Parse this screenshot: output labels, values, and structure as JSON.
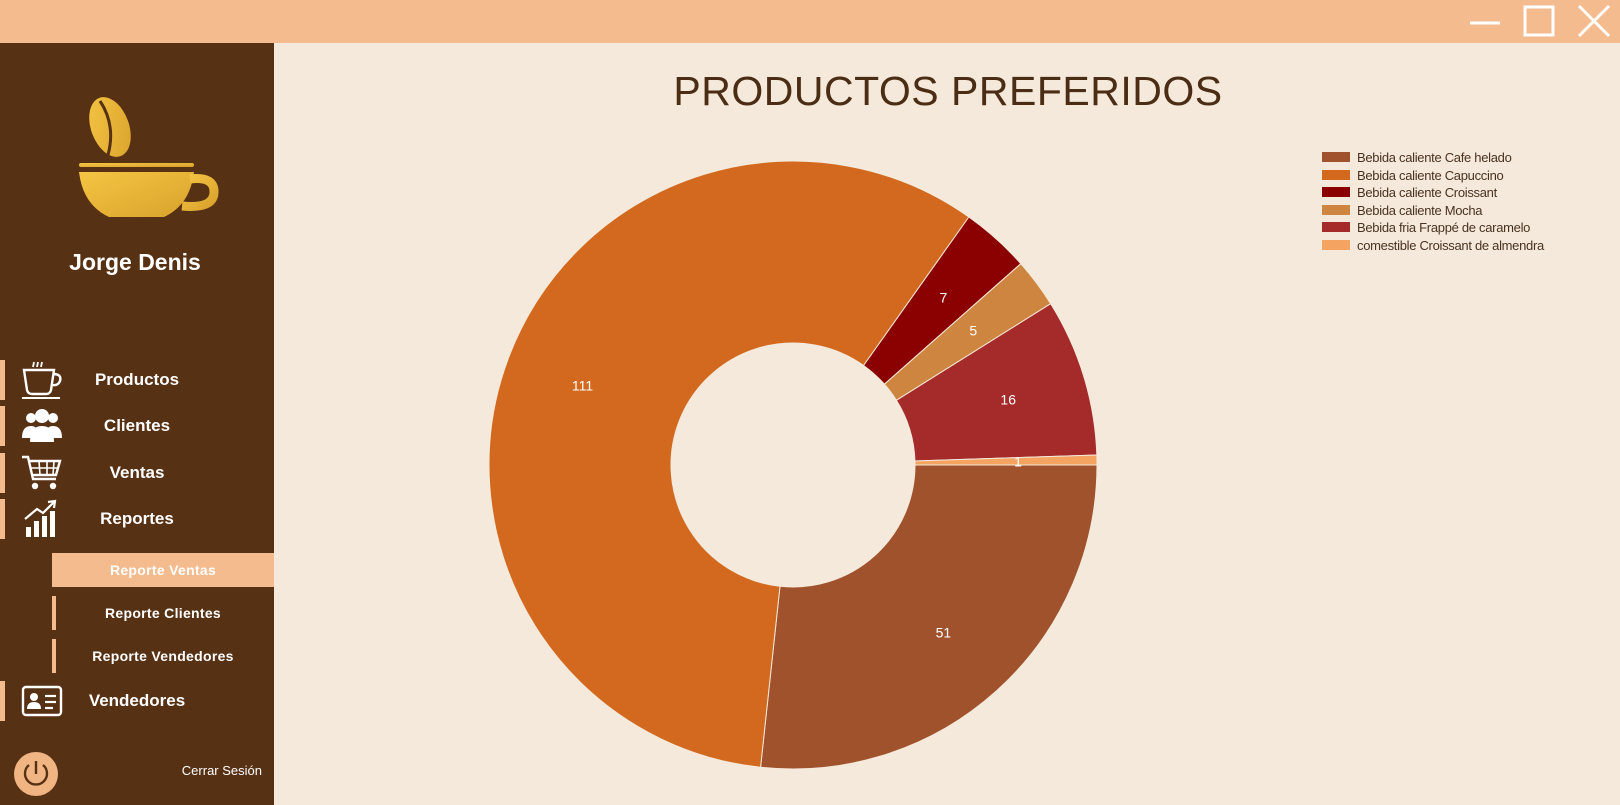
{
  "window": {
    "buttons": [
      "minimize",
      "maximize",
      "close"
    ]
  },
  "sidebar": {
    "user_name": "Jorge Denis",
    "items": [
      {
        "label": "Productos",
        "icon": "coffee-cup-icon"
      },
      {
        "label": "Clientes",
        "icon": "users-icon"
      },
      {
        "label": "Ventas",
        "icon": "shopping-cart-icon"
      },
      {
        "label": "Reportes",
        "icon": "bar-chart-icon"
      },
      {
        "label": "Vendedores",
        "icon": "id-card-icon"
      }
    ],
    "report_items": [
      {
        "label": "Reporte Ventas",
        "active": true
      },
      {
        "label": "Reporte Clientes",
        "active": false
      },
      {
        "label": "Reporte Vendedores",
        "active": false
      }
    ],
    "logout_label": "Cerrar Sesión"
  },
  "colors": {
    "titlebar": "#f4bb8e",
    "sidebar": "#573114",
    "accent": "#f4bb8e",
    "background": "#f4e9da"
  },
  "chart_data": {
    "type": "pie",
    "title": "PRODUCTOS PREFERIDOS",
    "donut": true,
    "legend_position": "top-right",
    "slices": [
      {
        "label": "Bebida caliente Cafe helado",
        "value": 51,
        "color": "#a0522d"
      },
      {
        "label": "Bebida caliente Capuccino",
        "value": 111,
        "color": "#d2691e"
      },
      {
        "label": "Bebida caliente Croissant",
        "value": 7,
        "color": "#8b0000"
      },
      {
        "label": "Bebida caliente Mocha",
        "value": 5,
        "color": "#cd853f"
      },
      {
        "label": "Bebida fria Frappé de caramelo",
        "value": 16,
        "color": "#a52a2a"
      },
      {
        "label": "comestible Croissant de almendra",
        "value": 1,
        "color": "#f4a460"
      }
    ]
  }
}
